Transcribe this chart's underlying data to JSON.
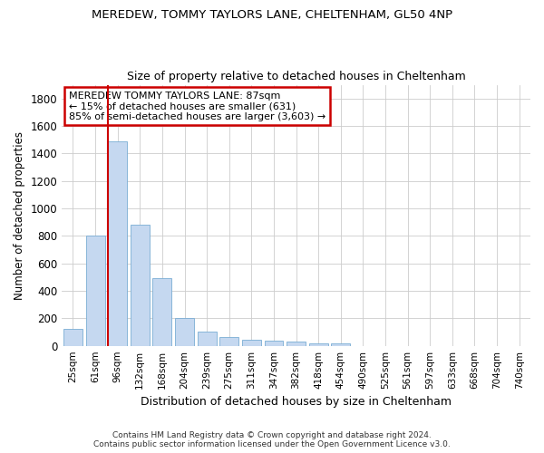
{
  "title1": "MEREDEW, TOMMY TAYLORS LANE, CHELTENHAM, GL50 4NP",
  "title2": "Size of property relative to detached houses in Cheltenham",
  "xlabel": "Distribution of detached houses by size in Cheltenham",
  "ylabel": "Number of detached properties",
  "footer1": "Contains HM Land Registry data © Crown copyright and database right 2024.",
  "footer2": "Contains public sector information licensed under the Open Government Licence v3.0.",
  "categories": [
    "25sqm",
    "61sqm",
    "96sqm",
    "132sqm",
    "168sqm",
    "204sqm",
    "239sqm",
    "275sqm",
    "311sqm",
    "347sqm",
    "382sqm",
    "418sqm",
    "454sqm",
    "490sqm",
    "525sqm",
    "561sqm",
    "597sqm",
    "633sqm",
    "668sqm",
    "704sqm",
    "740sqm"
  ],
  "values": [
    125,
    800,
    1490,
    880,
    490,
    205,
    105,
    65,
    45,
    35,
    30,
    20,
    15,
    0,
    0,
    0,
    0,
    0,
    0,
    0,
    0
  ],
  "bar_color": "#c5d8f0",
  "bar_edge_color": "#7aadd4",
  "grid_color": "#cccccc",
  "vline_color": "#cc0000",
  "annotation_text": "MEREDEW TOMMY TAYLORS LANE: 87sqm\n← 15% of detached houses are smaller (631)\n85% of semi-detached houses are larger (3,603) →",
  "annotation_box_color": "#cc0000",
  "ylim": [
    0,
    1900
  ],
  "yticks": [
    0,
    200,
    400,
    600,
    800,
    1000,
    1200,
    1400,
    1600,
    1800
  ],
  "bg_color": "#ffffff"
}
